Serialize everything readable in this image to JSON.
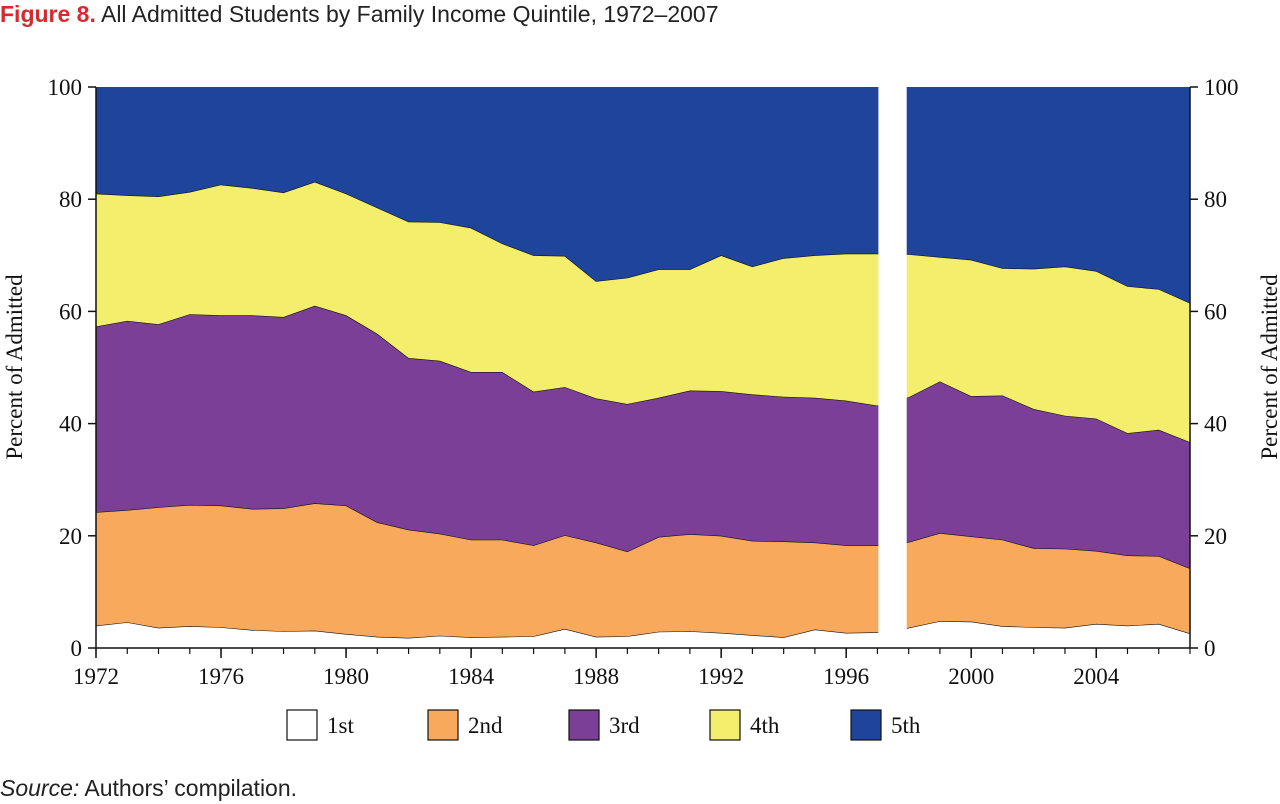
{
  "figure": {
    "prefix": "Figure 8.",
    "title": "All Admitted Students by Family Income Quintile, 1972–2007"
  },
  "source": {
    "label": "Source:",
    "text": "Authors’ compilation."
  },
  "chart_data": {
    "type": "area",
    "stacked": true,
    "title": "",
    "ylabel": "Percent of Admitted",
    "ylabel_right": "Percent of Admitted",
    "ylim": [
      0,
      100
    ],
    "xlim": [
      1972,
      2007
    ],
    "yticks": [
      0,
      20,
      40,
      60,
      80,
      100
    ],
    "xtick_labels": [
      "1972",
      "1976",
      "1980",
      "1984",
      "1988",
      "1992",
      "1996",
      "2000",
      "2004"
    ],
    "x": [
      1972,
      1973,
      1974,
      1975,
      1976,
      1977,
      1978,
      1979,
      1980,
      1981,
      1982,
      1983,
      1984,
      1985,
      1986,
      1987,
      1988,
      1989,
      1990,
      1991,
      1992,
      1993,
      1994,
      1995,
      1996,
      1997,
      1998,
      1999,
      2000,
      2001,
      2002,
      2003,
      2004,
      2005,
      2006,
      2007
    ],
    "gap": {
      "after": 1997,
      "before": 1998
    },
    "series_cumulative_top": [
      {
        "name": "1st",
        "color": "#ffffff",
        "values": [
          4.0,
          4.6,
          3.6,
          3.9,
          3.7,
          3.2,
          3.0,
          3.1,
          2.5,
          2.0,
          1.8,
          2.2,
          1.9,
          2.0,
          2.1,
          3.4,
          2.0,
          2.1,
          2.9,
          3.0,
          2.7,
          2.3,
          1.9,
          3.3,
          2.7,
          2.8,
          3.6,
          4.8,
          4.7,
          3.9,
          3.7,
          3.6,
          4.3,
          4.0,
          4.3,
          2.6
        ]
      },
      {
        "name": "2nd",
        "color": "#f8a95c",
        "values": [
          24.2,
          24.6,
          25.1,
          25.5,
          25.4,
          24.8,
          24.9,
          25.8,
          25.4,
          22.4,
          21.1,
          20.4,
          19.3,
          19.3,
          18.3,
          20.1,
          18.8,
          17.2,
          19.8,
          20.3,
          20.0,
          19.1,
          19.0,
          18.8,
          18.3,
          18.3,
          18.9,
          20.5,
          19.9,
          19.3,
          17.8,
          17.7,
          17.3,
          16.5,
          16.4,
          14.2
        ]
      },
      {
        "name": "3rd",
        "color": "#7b3f98",
        "values": [
          57.3,
          58.3,
          57.7,
          59.5,
          59.3,
          59.3,
          59.0,
          61.0,
          59.3,
          56.0,
          51.7,
          51.2,
          49.2,
          49.2,
          45.7,
          46.5,
          44.5,
          43.5,
          44.6,
          45.9,
          45.8,
          45.2,
          44.8,
          44.6,
          44.1,
          43.2,
          44.7,
          47.5,
          44.9,
          45.0,
          42.6,
          41.4,
          40.9,
          38.3,
          38.9,
          36.7
        ]
      },
      {
        "name": "4th",
        "color": "#f3ef6c",
        "values": [
          81.0,
          80.7,
          80.5,
          81.3,
          82.6,
          82.0,
          81.2,
          83.1,
          81.0,
          78.5,
          76.0,
          75.9,
          74.9,
          72.1,
          70.0,
          69.9,
          65.4,
          66.0,
          67.5,
          67.5,
          70.0,
          68.0,
          69.5,
          70.0,
          70.3,
          70.3,
          70.2,
          69.7,
          69.2,
          67.7,
          67.6,
          68.0,
          67.2,
          64.5,
          64.0,
          61.5
        ]
      },
      {
        "name": "5th",
        "color": "#1f449c",
        "values": [
          100,
          100,
          100,
          100,
          100,
          100,
          100,
          100,
          100,
          100,
          100,
          100,
          100,
          100,
          100,
          100,
          100,
          100,
          100,
          100,
          100,
          100,
          100,
          100,
          100,
          100,
          100,
          100,
          100,
          100,
          100,
          100,
          100,
          100,
          100,
          100
        ]
      }
    ],
    "legend": {
      "placement": "bottom-center",
      "entries": [
        "1st",
        "2nd",
        "3rd",
        "4th",
        "5th"
      ]
    },
    "grid": false
  }
}
